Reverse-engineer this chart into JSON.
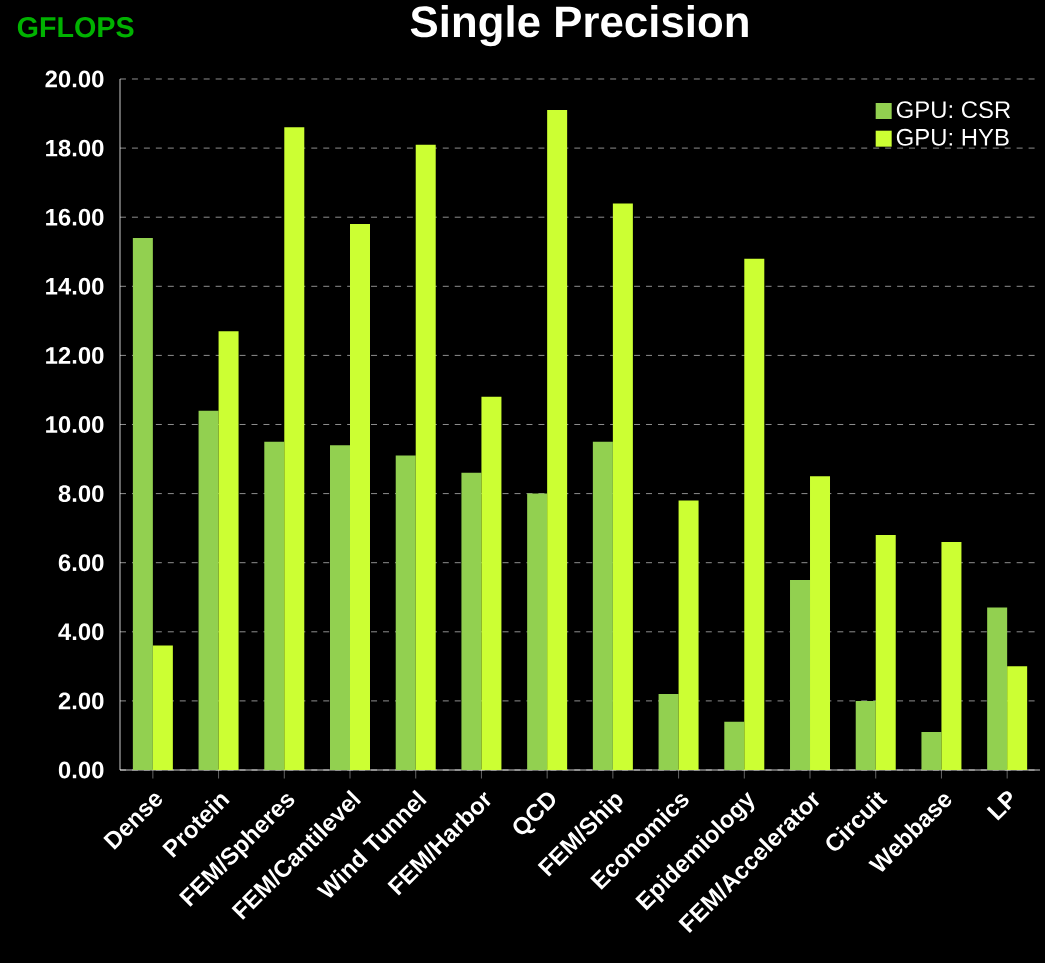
{
  "chart_data": {
    "type": "bar",
    "title": "Single Precision",
    "ylabel": "GFLOPS",
    "categories": [
      "Dense",
      "Protein",
      "FEM/Spheres",
      "FEM/Cantilevel",
      "Wind Tunnel",
      "FEM/Harbor",
      "QCD",
      "FEM/Ship",
      "Economics",
      "Epidemiology",
      "FEM/Accelerator",
      "Circuit",
      "Webbase",
      "LP"
    ],
    "series": [
      {
        "name": "GPU: CSR",
        "color": "#92d050",
        "values": [
          15.4,
          10.4,
          9.5,
          9.4,
          9.1,
          8.6,
          8.0,
          9.5,
          2.2,
          1.4,
          5.5,
          2.0,
          1.1,
          4.7
        ]
      },
      {
        "name": "GPU: HYB",
        "color": "#ccff33",
        "values": [
          3.6,
          12.7,
          18.6,
          15.8,
          18.1,
          10.8,
          19.1,
          16.4,
          7.8,
          14.8,
          8.5,
          6.8,
          6.6,
          3.0
        ]
      }
    ],
    "ylim": [
      0,
      20
    ],
    "yticks": [
      {
        "value": 0,
        "label": "0.00"
      },
      {
        "value": 2,
        "label": "2.00"
      },
      {
        "value": 4,
        "label": "4.00"
      },
      {
        "value": 6,
        "label": "6.00"
      },
      {
        "value": 8,
        "label": "8.00"
      },
      {
        "value": 10,
        "label": "10.00"
      },
      {
        "value": 12,
        "label": "12.00"
      },
      {
        "value": 14,
        "label": "14.00"
      },
      {
        "value": 16,
        "label": "16.00"
      },
      {
        "value": 18,
        "label": "18.00"
      },
      {
        "value": 20,
        "label": "20.00"
      }
    ],
    "grid": "y",
    "legend": "top right"
  }
}
